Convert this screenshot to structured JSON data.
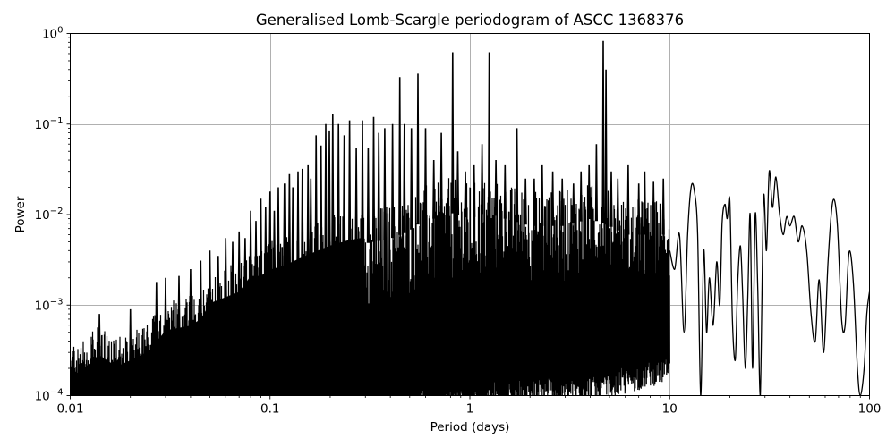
{
  "chart_data": {
    "type": "line",
    "title": "Generalised Lomb-Scargle periodogram of ASCC 1368376",
    "xlabel": "Period (days)",
    "ylabel": "Power",
    "xscale": "log",
    "yscale": "log",
    "xlim": [
      0.01,
      100
    ],
    "ylim": [
      0.0001,
      1
    ],
    "grid": true,
    "legend": null,
    "line_color": "#000000",
    "grid_color": "#b0b0b0",
    "x_ticks": [
      {
        "value": 0.01,
        "label": "0.01"
      },
      {
        "value": 0.1,
        "label": "0.1"
      },
      {
        "value": 1,
        "label": "1"
      },
      {
        "value": 10,
        "label": "10"
      },
      {
        "value": 100,
        "label": "100"
      }
    ],
    "y_ticks": [
      {
        "value": 1,
        "base": "10",
        "exp": "0"
      },
      {
        "value": 0.1,
        "base": "10",
        "exp": "−1"
      },
      {
        "value": 0.01,
        "base": "10",
        "exp": "−2"
      },
      {
        "value": 0.001,
        "base": "10",
        "exp": "−3"
      },
      {
        "value": 0.0001,
        "base": "10",
        "exp": "−4"
      }
    ],
    "dense_region": {
      "period_range": [
        0.01,
        12
      ],
      "description": "Densely oscillating periodogram; upper envelope given, troughs reach below 1e-4",
      "upper_envelope": [
        [
          0.01,
          0.00045
        ],
        [
          0.012,
          0.0006
        ],
        [
          0.014,
          0.0008
        ],
        [
          0.017,
          0.0006
        ],
        [
          0.02,
          0.0007
        ],
        [
          0.025,
          0.0009
        ],
        [
          0.03,
          0.0015
        ],
        [
          0.035,
          0.0016
        ],
        [
          0.04,
          0.0017
        ],
        [
          0.045,
          0.002
        ],
        [
          0.05,
          0.003
        ],
        [
          0.06,
          0.0035
        ],
        [
          0.07,
          0.004
        ],
        [
          0.08,
          0.006
        ],
        [
          0.09,
          0.006
        ],
        [
          0.1,
          0.007
        ],
        [
          0.12,
          0.008
        ],
        [
          0.15,
          0.01
        ],
        [
          0.2,
          0.013
        ],
        [
          0.25,
          0.015
        ],
        [
          0.3,
          0.016
        ],
        [
          0.4,
          0.018
        ],
        [
          0.5,
          0.022
        ],
        [
          0.6,
          0.03
        ],
        [
          0.7,
          0.03
        ],
        [
          0.8,
          0.035
        ],
        [
          1.0,
          0.03
        ],
        [
          1.2,
          0.035
        ],
        [
          1.5,
          0.03
        ],
        [
          2.0,
          0.025
        ],
        [
          3.0,
          0.025
        ],
        [
          4.0,
          0.03
        ],
        [
          5.0,
          0.025
        ],
        [
          6.0,
          0.02
        ],
        [
          8.0,
          0.02
        ],
        [
          10.0,
          0.02
        ],
        [
          12.0,
          0.015
        ]
      ],
      "lower_envelope": [
        [
          0.01,
          0.0001
        ],
        [
          0.25,
          0.0001
        ],
        [
          0.3,
          0.00012
        ],
        [
          0.5,
          0.0002
        ],
        [
          1.0,
          0.0002
        ],
        [
          2.0,
          0.0003
        ],
        [
          4.0,
          0.0003
        ],
        [
          8.0,
          0.0005
        ],
        [
          12.0,
          0.0006
        ]
      ],
      "peaks": [
        [
          0.014,
          0.0008
        ],
        [
          0.02,
          0.0009
        ],
        [
          0.027,
          0.0018
        ],
        [
          0.03,
          0.002
        ],
        [
          0.035,
          0.0021
        ],
        [
          0.04,
          0.0025
        ],
        [
          0.045,
          0.0031
        ],
        [
          0.05,
          0.004
        ],
        [
          0.055,
          0.0035
        ],
        [
          0.06,
          0.0055
        ],
        [
          0.065,
          0.005
        ],
        [
          0.07,
          0.0065
        ],
        [
          0.075,
          0.0055
        ],
        [
          0.08,
          0.011
        ],
        [
          0.085,
          0.0085
        ],
        [
          0.09,
          0.015
        ],
        [
          0.095,
          0.012
        ],
        [
          0.1,
          0.018
        ],
        [
          0.105,
          0.011
        ],
        [
          0.11,
          0.02
        ],
        [
          0.118,
          0.022
        ],
        [
          0.125,
          0.028
        ],
        [
          0.13,
          0.02
        ],
        [
          0.138,
          0.03
        ],
        [
          0.145,
          0.032
        ],
        [
          0.155,
          0.035
        ],
        [
          0.16,
          0.025
        ],
        [
          0.17,
          0.075
        ],
        [
          0.18,
          0.058
        ],
        [
          0.19,
          0.1
        ],
        [
          0.198,
          0.085
        ],
        [
          0.206,
          0.13
        ],
        [
          0.22,
          0.1
        ],
        [
          0.235,
          0.075
        ],
        [
          0.25,
          0.11
        ],
        [
          0.27,
          0.055
        ],
        [
          0.29,
          0.11
        ],
        [
          0.31,
          0.055
        ],
        [
          0.33,
          0.12
        ],
        [
          0.35,
          0.08
        ],
        [
          0.375,
          0.09
        ],
        [
          0.41,
          0.1
        ],
        [
          0.446,
          0.33
        ],
        [
          0.47,
          0.1
        ],
        [
          0.51,
          0.09
        ],
        [
          0.55,
          0.36
        ],
        [
          0.6,
          0.09
        ],
        [
          0.66,
          0.04
        ],
        [
          0.72,
          0.08
        ],
        [
          0.82,
          0.62
        ],
        [
          0.87,
          0.05
        ],
        [
          0.95,
          0.03
        ],
        [
          1.05,
          0.035
        ],
        [
          1.15,
          0.06
        ],
        [
          1.25,
          0.62
        ],
        [
          1.35,
          0.04
        ],
        [
          1.5,
          0.035
        ],
        [
          1.72,
          0.09
        ],
        [
          1.9,
          0.025
        ],
        [
          2.1,
          0.025
        ],
        [
          2.3,
          0.035
        ],
        [
          2.6,
          0.03
        ],
        [
          2.9,
          0.025
        ],
        [
          3.3,
          0.022
        ],
        [
          3.6,
          0.03
        ],
        [
          3.95,
          0.035
        ],
        [
          4.3,
          0.06
        ],
        [
          4.65,
          0.83
        ],
        [
          4.8,
          0.4
        ],
        [
          5.1,
          0.03
        ],
        [
          5.5,
          0.025
        ],
        [
          6.2,
          0.035
        ],
        [
          7.0,
          0.022
        ],
        [
          7.5,
          0.03
        ],
        [
          8.3,
          0.023
        ],
        [
          9.3,
          0.025
        ]
      ]
    },
    "smooth_region": {
      "period_range": [
        10,
        100
      ],
      "points": [
        [
          10.0,
          0.004
        ],
        [
          10.6,
          0.0025
        ],
        [
          11.2,
          0.006
        ],
        [
          11.8,
          0.0005
        ],
        [
          12.3,
          0.006
        ],
        [
          12.8,
          0.02
        ],
        [
          13.3,
          0.018
        ],
        [
          13.8,
          0.006
        ],
        [
          14.3,
          0.0001
        ],
        [
          14.8,
          0.004
        ],
        [
          15.3,
          0.0005
        ],
        [
          15.8,
          0.002
        ],
        [
          16.5,
          0.0006
        ],
        [
          17.2,
          0.003
        ],
        [
          17.8,
          0.001
        ],
        [
          18.3,
          0.008
        ],
        [
          18.9,
          0.013
        ],
        [
          19.4,
          0.009
        ],
        [
          20.0,
          0.014
        ],
        [
          20.6,
          0.0007
        ],
        [
          21.3,
          0.00025
        ],
        [
          21.9,
          0.0018
        ],
        [
          22.6,
          0.0045
        ],
        [
          23.2,
          0.0013
        ],
        [
          23.9,
          0.0002
        ],
        [
          24.6,
          0.0012
        ],
        [
          25.3,
          0.01
        ],
        [
          26.0,
          0.0002
        ],
        [
          26.8,
          0.01
        ],
        [
          27.6,
          0.0015
        ],
        [
          28.4,
          0.0001
        ],
        [
          29.5,
          0.015
        ],
        [
          30.5,
          0.004
        ],
        [
          31.5,
          0.03
        ],
        [
          32.7,
          0.012
        ],
        [
          34.0,
          0.026
        ],
        [
          35.5,
          0.01
        ],
        [
          37.0,
          0.006
        ],
        [
          38.5,
          0.0095
        ],
        [
          40.0,
          0.0075
        ],
        [
          42.0,
          0.0095
        ],
        [
          44.0,
          0.005
        ],
        [
          46.0,
          0.0075
        ],
        [
          48.5,
          0.004
        ],
        [
          51.0,
          0.0008
        ],
        [
          53.5,
          0.0004
        ],
        [
          56.0,
          0.0019
        ],
        [
          59.0,
          0.0003
        ],
        [
          62.0,
          0.003
        ],
        [
          65.5,
          0.014
        ],
        [
          69.0,
          0.008
        ],
        [
          72.5,
          0.0007
        ],
        [
          75.5,
          0.0006
        ],
        [
          79.0,
          0.0038
        ],
        [
          83.0,
          0.0018
        ],
        [
          87.0,
          0.0002
        ],
        [
          90.0,
          0.0001
        ],
        [
          94.0,
          0.0002
        ],
        [
          97.0,
          0.0008
        ],
        [
          100.0,
          0.0014
        ]
      ]
    }
  }
}
